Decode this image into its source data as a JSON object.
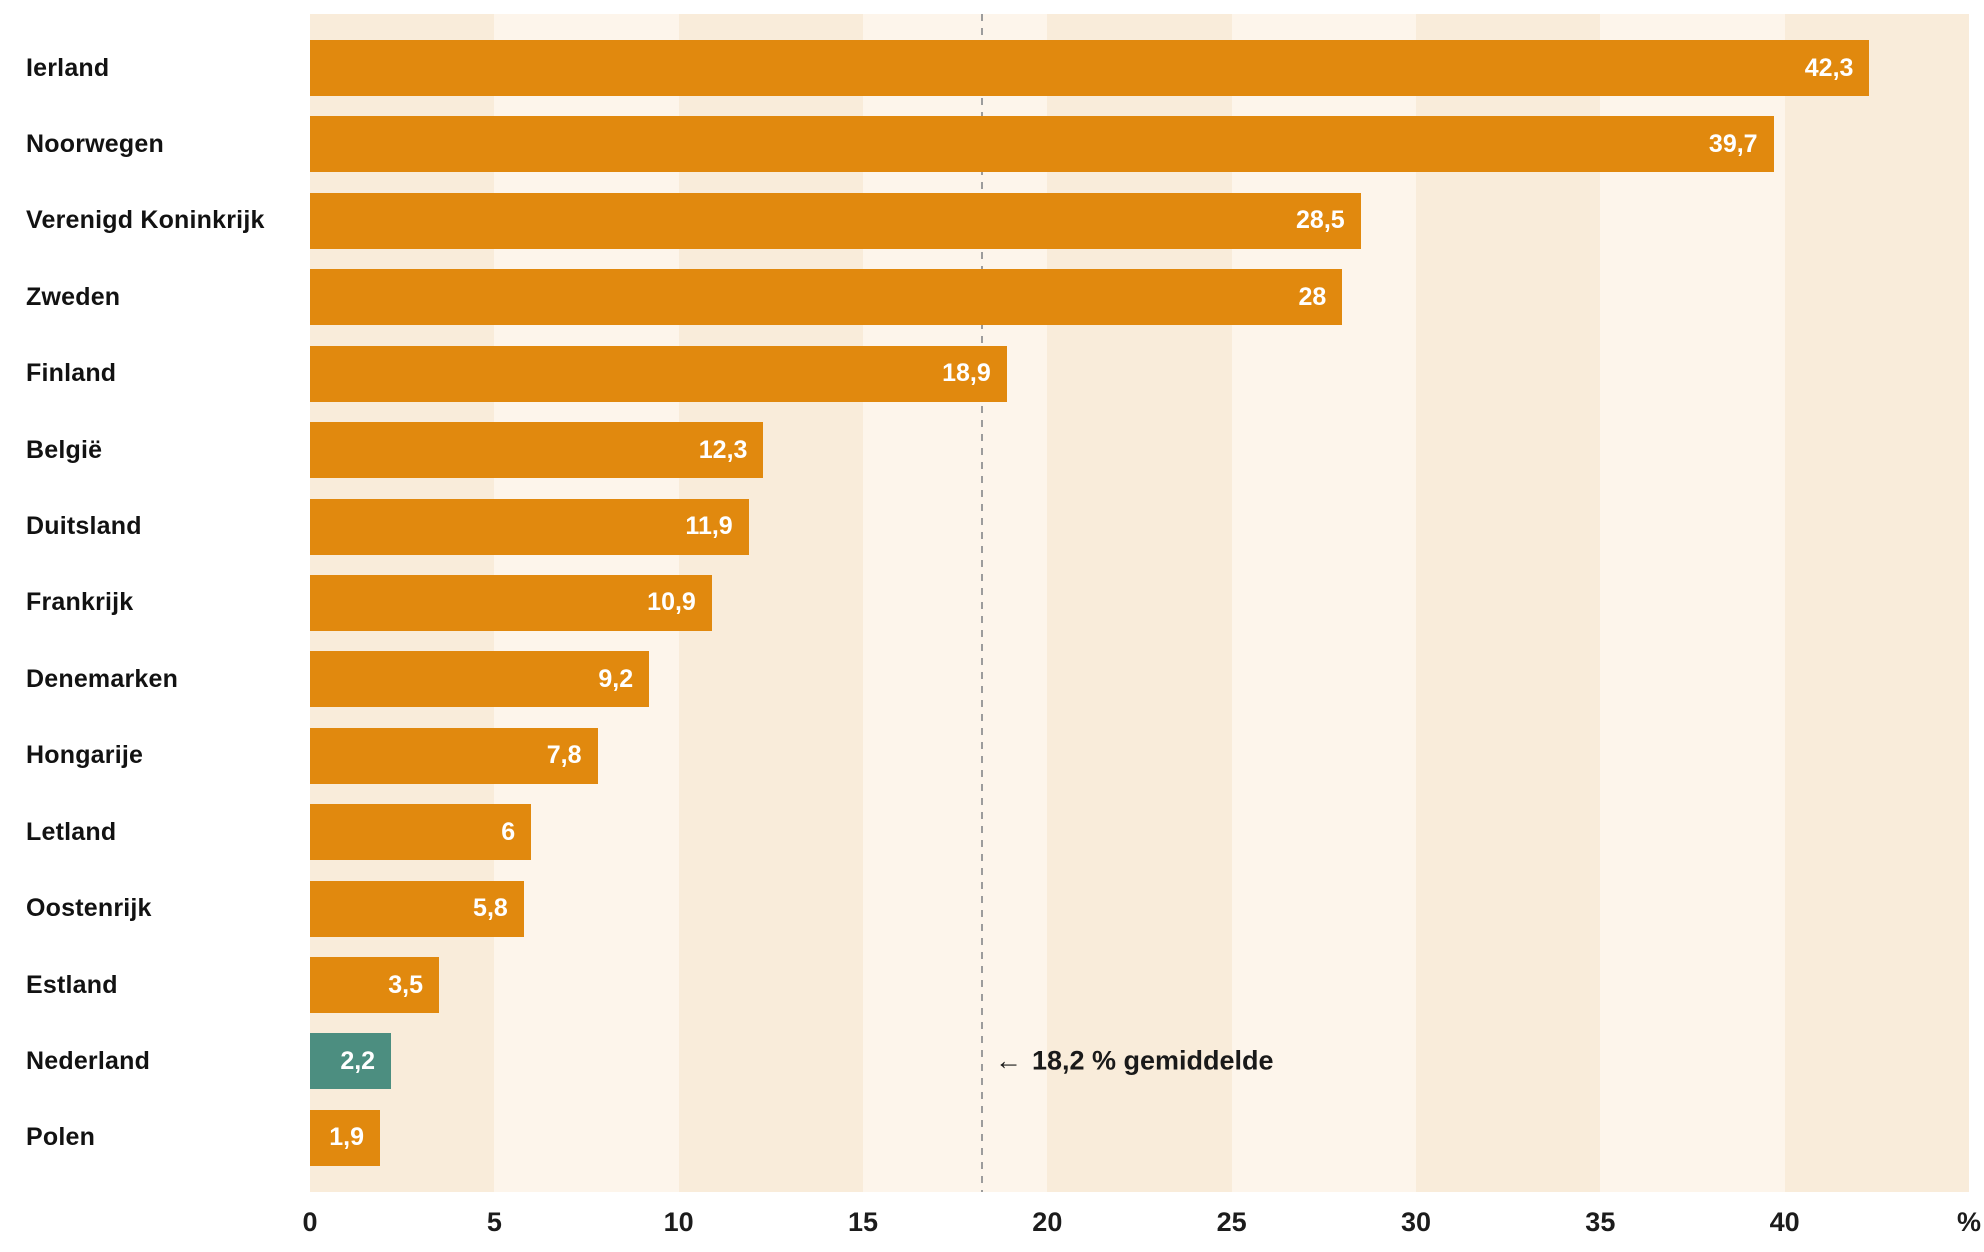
{
  "chart_data": {
    "type": "bar",
    "orientation": "horizontal",
    "title": "",
    "xlabel": "",
    "ylabel": "",
    "unit": "%",
    "categories": [
      "Ierland",
      "Noorwegen",
      "Verenigd Koninkrijk",
      "Zweden",
      "Finland",
      "België",
      "Duitsland",
      "Frankrijk",
      "Denemarken",
      "Hongarije",
      "Letland",
      "Oostenrijk",
      "Estland",
      "Nederland",
      "Polen"
    ],
    "values": [
      42.3,
      39.7,
      28.5,
      28,
      18.9,
      12.3,
      11.9,
      10.9,
      9.2,
      7.8,
      6,
      5.8,
      3.5,
      2.2,
      1.9
    ],
    "value_labels": [
      "42,3",
      "39,7",
      "28,5",
      "28",
      "18,9",
      "12,3",
      "11,9",
      "10,9",
      "9,2",
      "7,8",
      "6",
      "5,8",
      "3,5",
      "2,2",
      "1,9"
    ],
    "highlight_index": 13,
    "xlim": [
      0,
      45
    ],
    "band_width": 5,
    "x_ticks": [
      0,
      5,
      10,
      15,
      20,
      25,
      30,
      35,
      40
    ],
    "x_axis_suffix": "%",
    "average": {
      "value": 18.2,
      "arrow": "←",
      "label": "18,2 % gemiddelde",
      "row_index": 13
    },
    "grid": "vertical-stripes",
    "legend": "none",
    "colors": {
      "bar": "#E1890E",
      "highlight": "#4C8E80",
      "stripe_a": "#F9ECDA",
      "stripe_b": "#FDF5EB",
      "average_line": "#9C9C9C",
      "value_text": "#FFFFFF",
      "label_text": "#121212",
      "axis_text": "#1C1C1C",
      "background": "#FFFFFF"
    }
  }
}
